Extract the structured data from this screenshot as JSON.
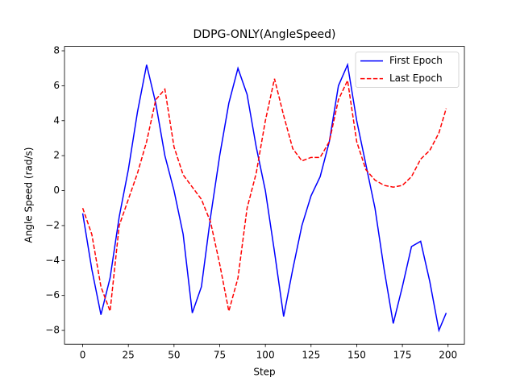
{
  "chart_data": {
    "type": "line",
    "title": "DDPG-ONLY(AngleSpeed)",
    "x_label": "Step",
    "y_label": "Angle Speed (rad/s)",
    "x": [
      0,
      5,
      10,
      15,
      20,
      25,
      30,
      35,
      40,
      45,
      50,
      55,
      60,
      65,
      70,
      75,
      80,
      85,
      90,
      95,
      100,
      105,
      110,
      115,
      120,
      125,
      130,
      135,
      140,
      145,
      150,
      155,
      160,
      165,
      170,
      175,
      180,
      185,
      190,
      195,
      199
    ],
    "series": [
      {
        "name": "First Epoch",
        "color": "#0000ff",
        "dash": "solid",
        "values": [
          -1.3,
          -4.5,
          -7.1,
          -5,
          -1.5,
          1.2,
          4.5,
          7.2,
          5,
          2,
          0,
          -2.5,
          -7,
          -5.5,
          -1.5,
          2,
          5,
          7,
          5.5,
          2.5,
          0,
          -3.5,
          -7.2,
          -4.5,
          -2,
          -0.3,
          0.8,
          2.8,
          6,
          7.2,
          4,
          1.5,
          -1,
          -4.5,
          -7.6,
          -5.5,
          -3.2,
          -2.9,
          -5.2,
          -8,
          -7
        ]
      },
      {
        "name": "Last Epoch",
        "color": "#ff0000",
        "dash": "dashed",
        "values": [
          -1,
          -2.5,
          -5.5,
          -6.9,
          -2,
          -0.5,
          1,
          2.8,
          5.2,
          5.8,
          2.5,
          0.9,
          0.2,
          -0.5,
          -1.8,
          -4.2,
          -6.9,
          -5,
          -1,
          1,
          4,
          6.4,
          4.3,
          2.4,
          1.7,
          1.9,
          1.9,
          2.8,
          5.2,
          6.3,
          2.8,
          1.2,
          0.6,
          0.3,
          0.2,
          0.3,
          0.8,
          1.8,
          2.3,
          3.3,
          4.7
        ]
      }
    ],
    "xlim": [
      -9.95,
      208.95
    ],
    "xticks": [
      0,
      25,
      50,
      75,
      100,
      125,
      150,
      175,
      200
    ],
    "ylim": [
      -8.79,
      8.25
    ],
    "yticks": [
      {
        "value": -8,
        "label": "−8"
      },
      {
        "value": -6,
        "label": "−6"
      },
      {
        "value": -4,
        "label": "−4"
      },
      {
        "value": -2,
        "label": "−2"
      },
      0,
      2,
      4,
      6,
      8
    ],
    "legend": "upper right"
  }
}
